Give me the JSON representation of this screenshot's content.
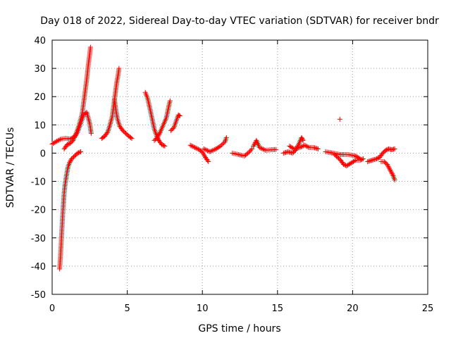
{
  "chart_data": {
    "type": "scatter",
    "title": "Day 018 of 2022, Sidereal Day-to-day VTEC variation (SDTVAR) for receiver bndr",
    "xlabel": "GPS time / hours",
    "ylabel": "SDTVAR / TECUs",
    "xlim": [
      0,
      25
    ],
    "ylim": [
      -50,
      40
    ],
    "x_ticks": [
      0,
      5,
      10,
      15,
      20,
      25
    ],
    "y_ticks": [
      -50,
      -40,
      -30,
      -20,
      -10,
      0,
      10,
      20,
      30,
      40
    ],
    "grid": true,
    "marker": "plus",
    "colors": {
      "series": "#ff0000",
      "grid": "#a0a0a0",
      "axis": "#000000"
    },
    "series": [
      {
        "name": "SDTVAR",
        "tracks": [
          [
            [
              0.0,
              3.2
            ],
            [
              0.3,
              4.2
            ],
            [
              0.6,
              5.0
            ],
            [
              0.9,
              5.2
            ],
            [
              1.2,
              5.0
            ],
            [
              1.5,
              5.8
            ],
            [
              1.7,
              7.5
            ],
            [
              1.9,
              10.5
            ],
            [
              2.1,
              13.5
            ],
            [
              2.3,
              14.5
            ],
            [
              2.5,
              10.5
            ],
            [
              2.6,
              7.0
            ]
          ],
          [
            [
              0.5,
              -41.0
            ],
            [
              0.55,
              -37.0
            ],
            [
              0.6,
              -32.0
            ],
            [
              0.65,
              -27.0
            ],
            [
              0.7,
              -22.0
            ],
            [
              0.75,
              -18.0
            ],
            [
              0.8,
              -14.0
            ],
            [
              0.85,
              -11.5
            ],
            [
              0.95,
              -8.0
            ],
            [
              1.05,
              -5.0
            ],
            [
              1.15,
              -3.5
            ],
            [
              1.3,
              -2.0
            ],
            [
              1.5,
              -1.0
            ],
            [
              1.7,
              0.0
            ],
            [
              1.9,
              0.5
            ]
          ],
          [
            [
              0.8,
              1.5
            ],
            [
              1.0,
              3.0
            ],
            [
              1.2,
              3.5
            ],
            [
              1.4,
              4.5
            ],
            [
              1.6,
              7.0
            ],
            [
              1.8,
              10.0
            ],
            [
              2.0,
              14.0
            ],
            [
              2.15,
              20.0
            ],
            [
              2.3,
              26.0
            ],
            [
              2.4,
              31.0
            ],
            [
              2.5,
              35.0
            ],
            [
              2.55,
              37.5
            ]
          ],
          [
            [
              3.3,
              5.2
            ],
            [
              3.5,
              6.0
            ],
            [
              3.7,
              7.5
            ],
            [
              3.85,
              10.0
            ],
            [
              4.0,
              13.0
            ],
            [
              4.1,
              17.0
            ],
            [
              4.2,
              21.0
            ],
            [
              4.3,
              25.0
            ],
            [
              4.4,
              28.0
            ],
            [
              4.45,
              30.0
            ]
          ],
          [
            [
              4.15,
              19.0
            ],
            [
              4.25,
              15.0
            ],
            [
              4.35,
              12.0
            ],
            [
              4.5,
              9.5
            ],
            [
              4.7,
              8.0
            ],
            [
              4.9,
              7.0
            ],
            [
              5.1,
              6.0
            ],
            [
              5.3,
              5.2
            ]
          ],
          [
            [
              6.2,
              21.5
            ],
            [
              6.35,
              19.5
            ],
            [
              6.5,
              16.0
            ],
            [
              6.6,
              13.5
            ],
            [
              6.7,
              11.0
            ],
            [
              6.8,
              8.5
            ],
            [
              6.9,
              7.0
            ],
            [
              7.0,
              5.5
            ],
            [
              7.1,
              4.5
            ],
            [
              7.3,
              3.0
            ],
            [
              7.5,
              2.5
            ]
          ],
          [
            [
              6.8,
              4.5
            ],
            [
              7.0,
              5.5
            ],
            [
              7.2,
              7.5
            ],
            [
              7.4,
              10.0
            ],
            [
              7.6,
              12.5
            ],
            [
              7.7,
              15.0
            ],
            [
              7.8,
              17.5
            ],
            [
              7.85,
              18.5
            ]
          ],
          [
            [
              7.9,
              8.0
            ],
            [
              8.1,
              9.0
            ],
            [
              8.4,
              13.5
            ],
            [
              8.5,
              13.2
            ]
          ],
          [
            [
              9.2,
              2.8
            ],
            [
              9.5,
              2.0
            ],
            [
              9.8,
              1.2
            ],
            [
              10.0,
              0.3
            ],
            [
              10.2,
              -1.5
            ],
            [
              10.4,
              -3.0
            ]
          ],
          [
            [
              10.1,
              1.5
            ],
            [
              10.5,
              0.5
            ],
            [
              10.9,
              1.5
            ],
            [
              11.2,
              2.5
            ],
            [
              11.5,
              4.0
            ],
            [
              11.6,
              5.5
            ]
          ],
          [
            [
              12.0,
              0.0
            ],
            [
              12.4,
              -0.5
            ],
            [
              12.8,
              -1.0
            ],
            [
              13.1,
              0.3
            ],
            [
              13.3,
              1.5
            ]
          ],
          [
            [
              13.4,
              2.5
            ],
            [
              13.6,
              4.5
            ],
            [
              13.8,
              2.0
            ],
            [
              14.2,
              1.0
            ],
            [
              14.6,
              1.2
            ],
            [
              14.9,
              1.3
            ]
          ],
          [
            [
              15.4,
              0.0
            ],
            [
              15.7,
              0.5
            ],
            [
              16.0,
              0.0
            ],
            [
              16.2,
              1.0
            ],
            [
              16.4,
              3.0
            ],
            [
              16.6,
              5.5
            ],
            [
              16.7,
              4.5
            ]
          ],
          [
            [
              15.8,
              2.5
            ],
            [
              16.1,
              1.5
            ],
            [
              16.5,
              2.0
            ],
            [
              16.8,
              2.8
            ],
            [
              17.1,
              2.0
            ],
            [
              17.4,
              2.0
            ],
            [
              17.7,
              1.5
            ]
          ],
          [
            [
              18.2,
              0.5
            ],
            [
              18.7,
              0.0
            ],
            [
              19.2,
              -0.5
            ],
            [
              19.7,
              -0.5
            ],
            [
              20.2,
              -1.0
            ],
            [
              20.5,
              -2.0
            ]
          ],
          [
            [
              18.8,
              -0.5
            ],
            [
              19.2,
              -2.5
            ],
            [
              19.4,
              -4.0
            ],
            [
              19.6,
              -4.5
            ],
            [
              19.9,
              -3.5
            ],
            [
              20.2,
              -2.5
            ],
            [
              20.5,
              -2.5
            ],
            [
              20.7,
              -2.0
            ]
          ],
          [
            [
              19.15,
              12.0
            ]
          ],
          [
            [
              21.0,
              -3.0
            ],
            [
              21.3,
              -2.5
            ],
            [
              21.6,
              -2.0
            ],
            [
              21.8,
              -1.5
            ],
            [
              22.0,
              0.0
            ],
            [
              22.2,
              1.0
            ],
            [
              22.4,
              1.5
            ],
            [
              22.6,
              1.2
            ],
            [
              22.8,
              1.5
            ]
          ],
          [
            [
              21.9,
              -3.0
            ],
            [
              22.1,
              -3.0
            ],
            [
              22.3,
              -4.0
            ],
            [
              22.5,
              -6.0
            ],
            [
              22.7,
              -8.0
            ],
            [
              22.8,
              -9.5
            ]
          ]
        ]
      }
    ]
  }
}
